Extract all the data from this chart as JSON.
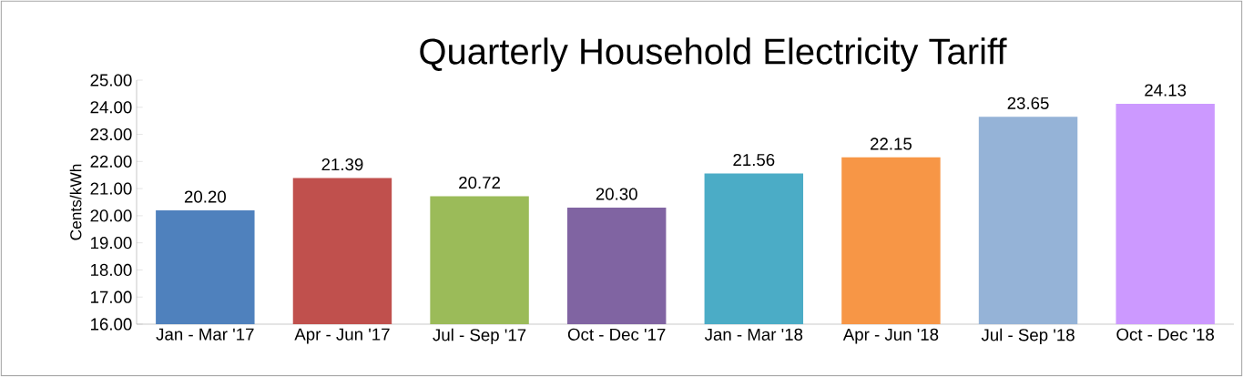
{
  "chart_data": {
    "type": "bar",
    "title": "Quarterly Household Electricity Tariff",
    "ylabel": "Cents/kWh",
    "categories": [
      "Jan - Mar '17",
      "Apr - Jun '17",
      "Jul - Sep '17",
      "Oct - Dec '17",
      "Jan - Mar '18",
      "Apr - Jun '18",
      "Jul - Sep '18",
      "Oct - Dec '18"
    ],
    "values": [
      20.2,
      21.39,
      20.72,
      20.3,
      21.56,
      22.15,
      23.65,
      24.13
    ],
    "value_labels": [
      "20.20",
      "21.39",
      "20.72",
      "20.30",
      "21.56",
      "22.15",
      "23.65",
      "24.13"
    ],
    "colors": [
      "#4f81bd",
      "#c0504d",
      "#9bbb59",
      "#8064a2",
      "#4bacc6",
      "#f79646",
      "#95b3d7",
      "#cc99ff"
    ],
    "ylim": [
      16,
      25
    ],
    "yticks": [
      {
        "value": 16,
        "label": "16.00"
      },
      {
        "value": 17,
        "label": "17.00"
      },
      {
        "value": 18,
        "label": "18.00"
      },
      {
        "value": 19,
        "label": "19.00"
      },
      {
        "value": 20,
        "label": "20.00"
      },
      {
        "value": 21,
        "label": "21.00"
      },
      {
        "value": 22,
        "label": "22.00"
      },
      {
        "value": 23,
        "label": "23.00"
      },
      {
        "value": 24,
        "label": "24.00"
      },
      {
        "value": 25,
        "label": "25.00"
      }
    ]
  }
}
